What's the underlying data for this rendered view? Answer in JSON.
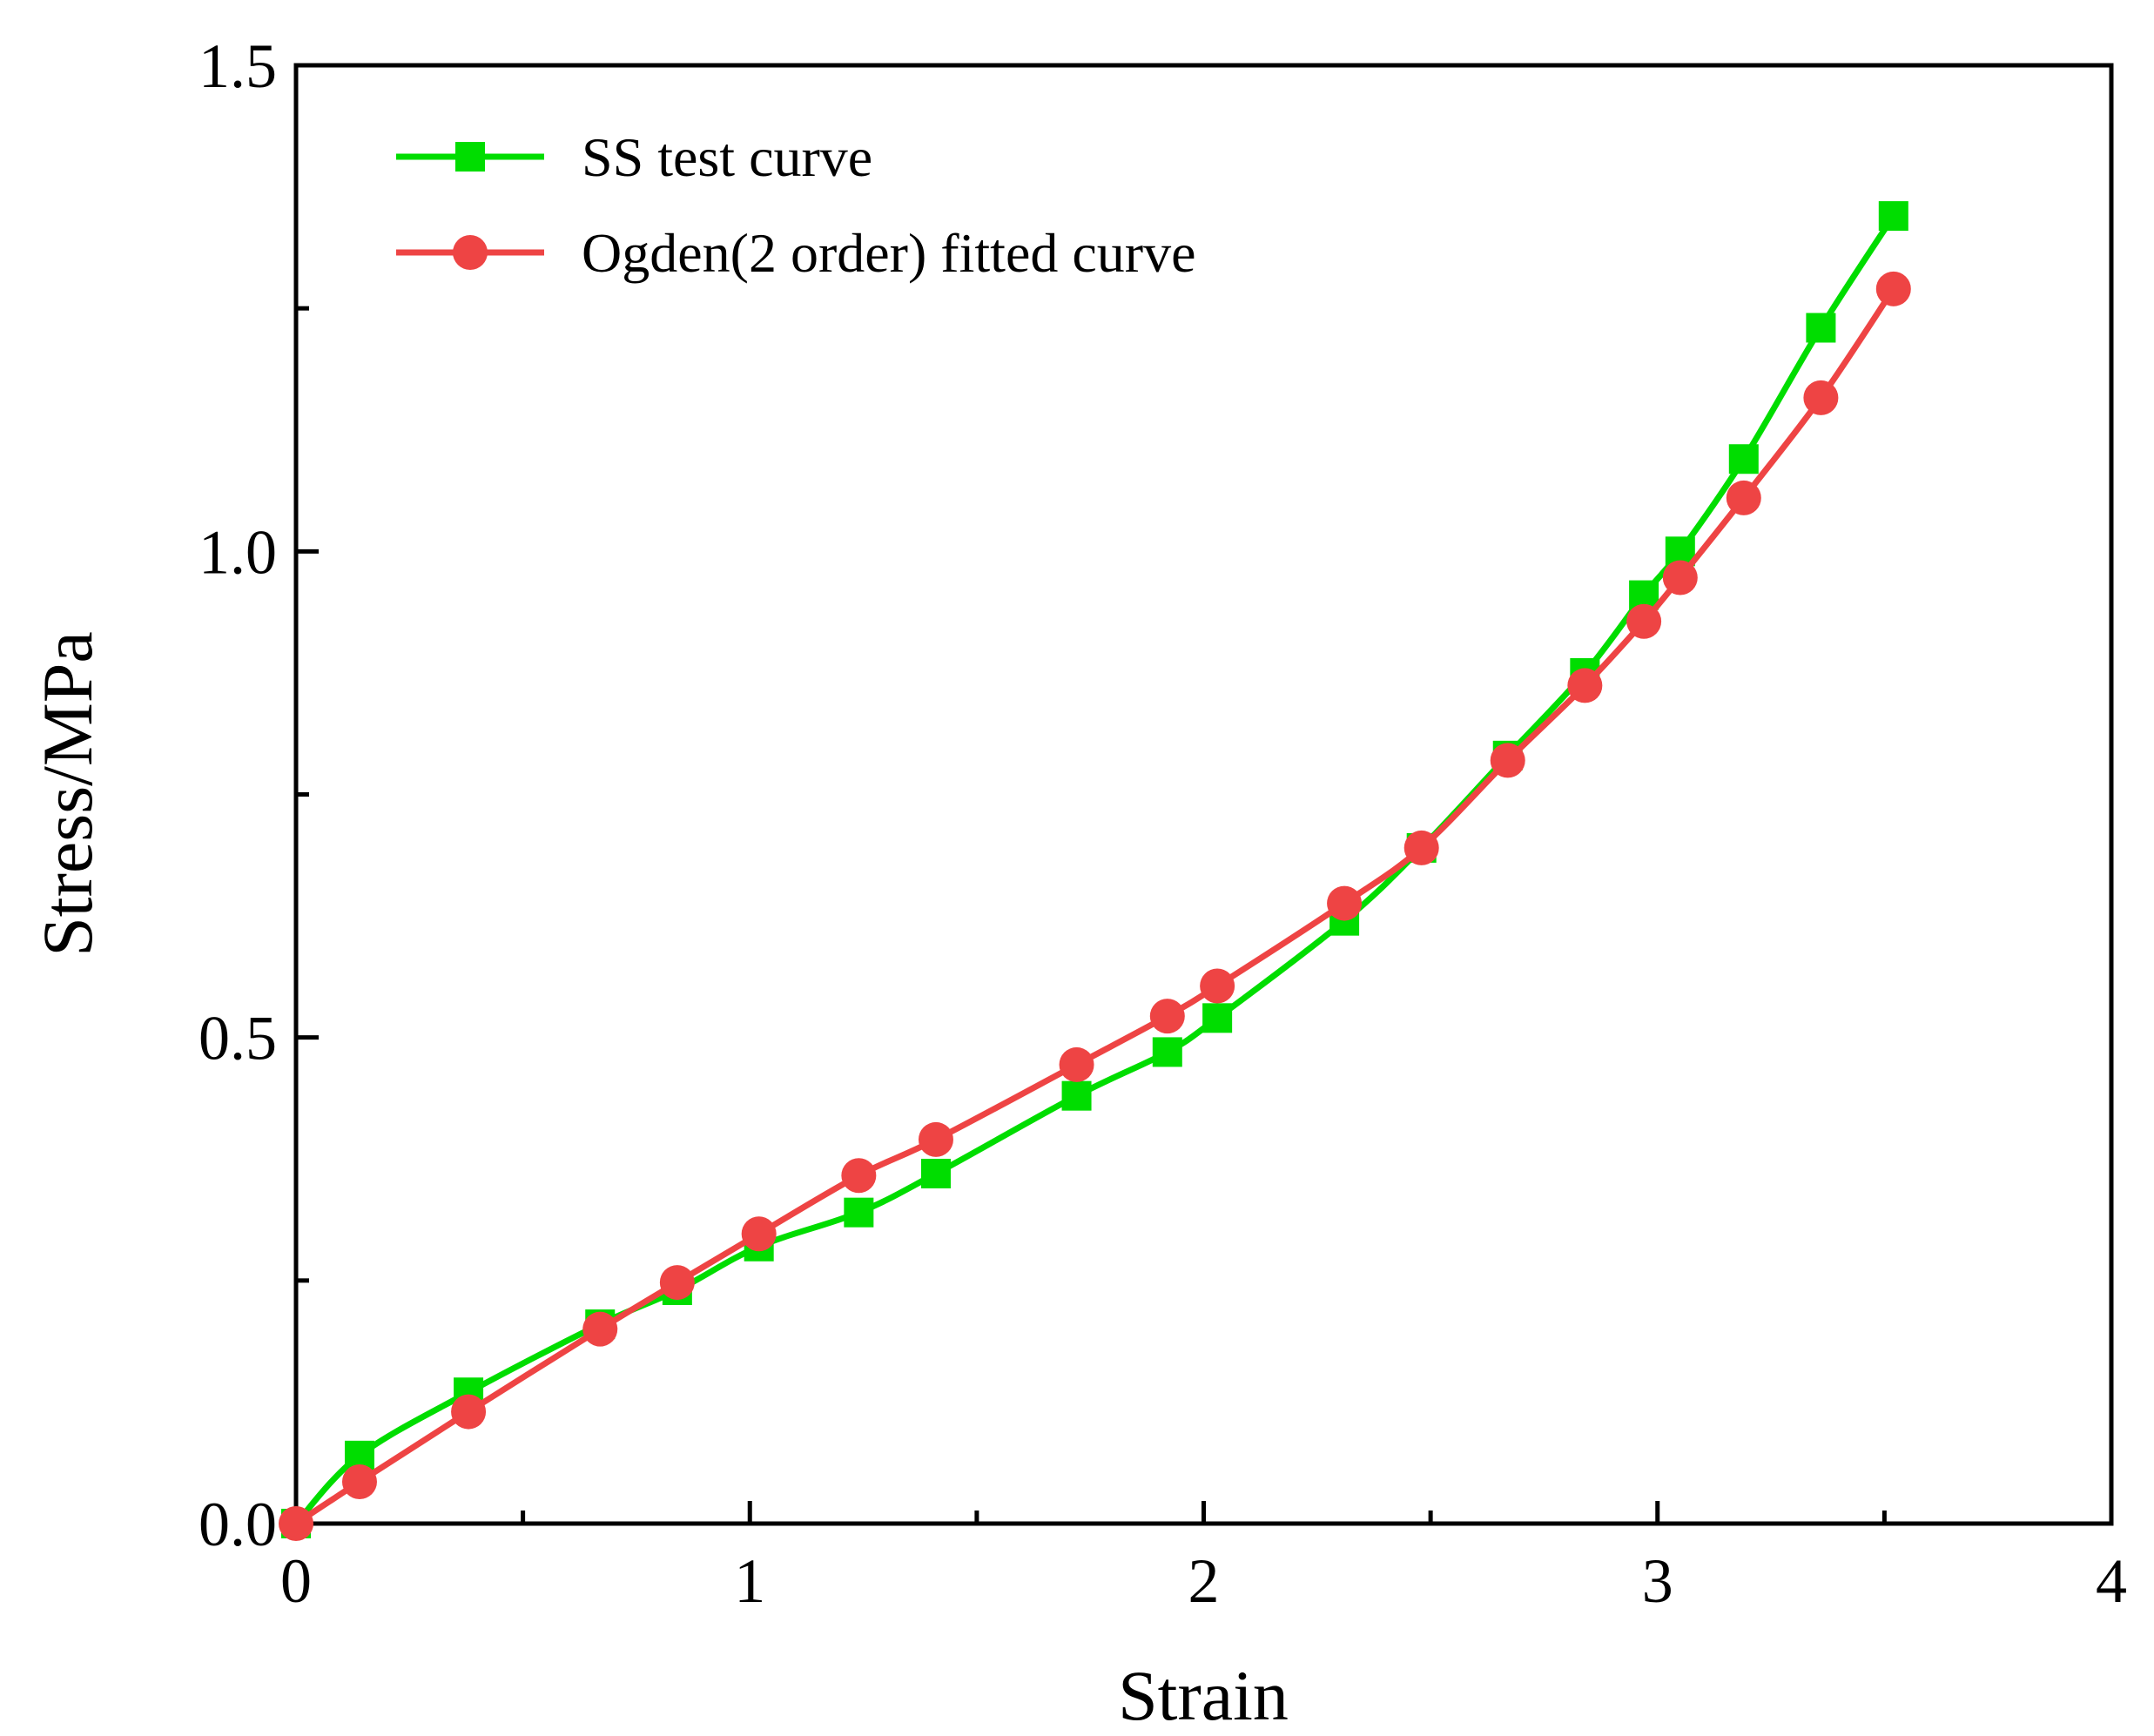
{
  "chart_data": {
    "type": "line",
    "title": "",
    "xlabel": "Strain",
    "ylabel": "Stress/MPa",
    "xlim": [
      0,
      4
    ],
    "ylim": [
      0,
      1.5
    ],
    "xticks": [
      0,
      1,
      2,
      3,
      4
    ],
    "xtick_labels": [
      "0",
      "1",
      "2",
      "3",
      "4"
    ],
    "yticks": [
      0.0,
      0.5,
      1.0,
      1.5
    ],
    "ytick_labels": [
      "0.0",
      "0.5",
      "1.0",
      "1.5"
    ],
    "grid": false,
    "legend_position": "top-left",
    "series": [
      {
        "name": "SS test curve",
        "color": "#00dd00",
        "marker": "square",
        "x": [
          0,
          0.14,
          0.38,
          0.67,
          0.84,
          1.02,
          1.24,
          1.41,
          1.72,
          1.92,
          2.03,
          2.31,
          2.48,
          2.67,
          2.84,
          2.97,
          3.05,
          3.19,
          3.36,
          3.52
        ],
        "y": [
          0,
          0.07,
          0.135,
          0.205,
          0.24,
          0.285,
          0.32,
          0.36,
          0.44,
          0.485,
          0.52,
          0.62,
          0.695,
          0.79,
          0.875,
          0.955,
          1.0,
          1.095,
          1.23,
          1.345
        ]
      },
      {
        "name": "Ogden(2 order) fitted curve",
        "color": "#ee4444",
        "marker": "circle",
        "x": [
          0,
          0.14,
          0.38,
          0.67,
          0.84,
          1.02,
          1.24,
          1.41,
          1.72,
          1.92,
          2.03,
          2.31,
          2.48,
          2.67,
          2.84,
          2.97,
          3.05,
          3.19,
          3.36,
          3.52
        ],
        "y": [
          0,
          0.043,
          0.115,
          0.2,
          0.248,
          0.298,
          0.358,
          0.395,
          0.472,
          0.522,
          0.553,
          0.638,
          0.695,
          0.785,
          0.862,
          0.928,
          0.973,
          1.055,
          1.158,
          1.27
        ]
      }
    ]
  }
}
